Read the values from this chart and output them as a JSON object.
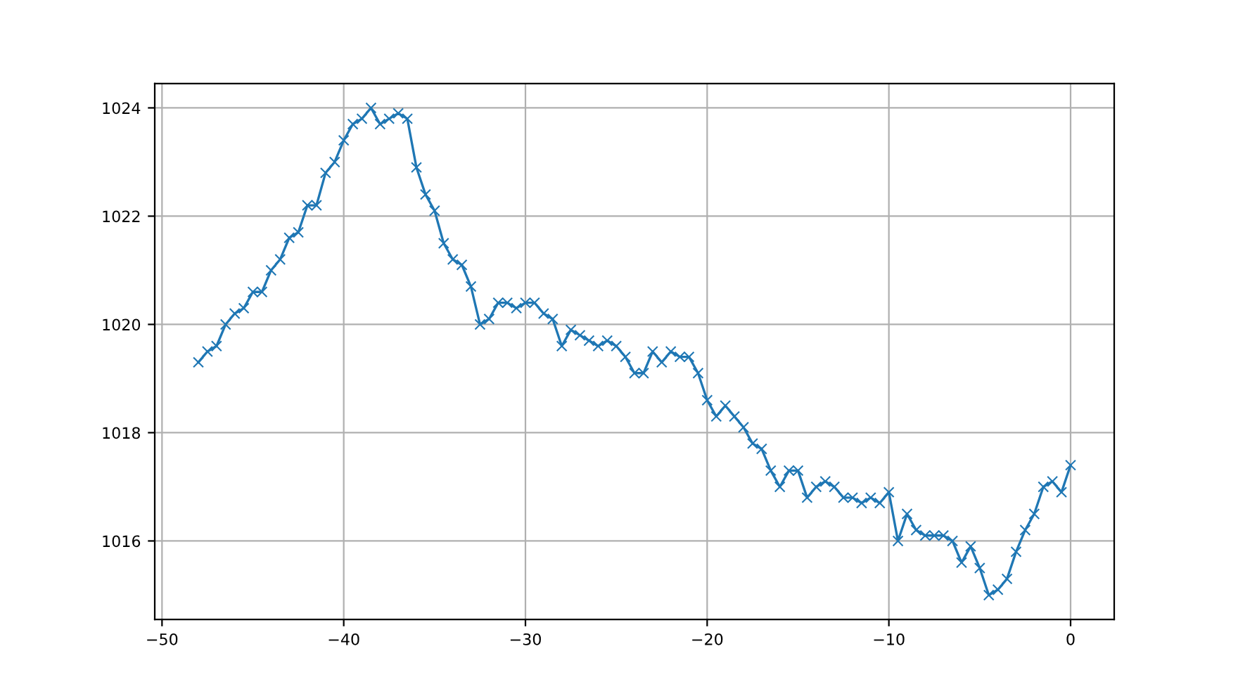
{
  "chart_data": {
    "type": "line",
    "x": [
      -48,
      -47.5,
      -47,
      -46.5,
      -46,
      -45.5,
      -45,
      -44.5,
      -44,
      -43.5,
      -43,
      -42.5,
      -42,
      -41.5,
      -41,
      -40.5,
      -40,
      -39.5,
      -39,
      -38.5,
      -38,
      -37.5,
      -37,
      -36.5,
      -36,
      -35.5,
      -35,
      -34.5,
      -34,
      -33.5,
      -33,
      -32.5,
      -32,
      -31.5,
      -31,
      -30.5,
      -30,
      -29.5,
      -29,
      -28.5,
      -28,
      -27.5,
      -27,
      -26.5,
      -26,
      -25.5,
      -25,
      -24.5,
      -24,
      -23.5,
      -23,
      -22.5,
      -22,
      -21.5,
      -21,
      -20.5,
      -20,
      -19.5,
      -19,
      -18.5,
      -18,
      -17.5,
      -17,
      -16.5,
      -16,
      -15.5,
      -15,
      -14.5,
      -14,
      -13.5,
      -13,
      -12.5,
      -12,
      -11.5,
      -11,
      -10.5,
      -10,
      -9.5,
      -9,
      -8.5,
      -8,
      -7.5,
      -7,
      -6.5,
      -6,
      -5.5,
      -5,
      -4.5,
      -4,
      -3.5,
      -3,
      -2.5,
      -2,
      -1.5,
      -1,
      -0.5,
      0
    ],
    "series": [
      {
        "color": "#1f77b4",
        "values": [
          1019.3,
          1019.5,
          1019.6,
          1020.0,
          1020.2,
          1020.3,
          1020.6,
          1020.6,
          1021.0,
          1021.2,
          1021.6,
          1021.7,
          1022.2,
          1022.2,
          1022.8,
          1023.0,
          1023.4,
          1023.7,
          1023.8,
          1024.0,
          1023.7,
          1023.8,
          1023.9,
          1023.8,
          1022.9,
          1022.4,
          1022.1,
          1021.5,
          1021.2,
          1021.1,
          1020.7,
          1020.0,
          1020.1,
          1020.4,
          1020.4,
          1020.3,
          1020.4,
          1020.4,
          1020.2,
          1020.1,
          1019.6,
          1019.9,
          1019.8,
          1019.7,
          1019.6,
          1019.7,
          1019.6,
          1019.4,
          1019.1,
          1019.1,
          1019.5,
          1019.3,
          1019.5,
          1019.4,
          1019.4,
          1019.1,
          1018.6,
          1018.3,
          1018.5,
          1018.3,
          1018.1,
          1017.8,
          1017.7,
          1017.3,
          1017.0,
          1017.3,
          1017.3,
          1016.8,
          1017.0,
          1017.1,
          1017.0,
          1016.8,
          1016.8,
          1016.7,
          1016.8,
          1016.7,
          1016.9,
          1016.0,
          1016.5,
          1016.2,
          1016.1,
          1016.1,
          1016.1,
          1016.0,
          1015.6,
          1015.9,
          1015.5,
          1015.0,
          1015.1,
          1015.3,
          1015.8,
          1016.2,
          1016.5,
          1017.0,
          1017.1,
          1016.9,
          1017.4
        ]
      }
    ],
    "xlim": [
      -50.4,
      2.4
    ],
    "xticks": [
      {
        "value": -50,
        "label": "−50"
      },
      {
        "value": -40,
        "label": "−40"
      },
      {
        "value": -30,
        "label": "−30"
      },
      {
        "value": -20,
        "label": "−20"
      },
      {
        "value": -10,
        "label": "−10"
      },
      0
    ],
    "ylim": [
      1014.55,
      1024.45
    ],
    "yticks": [
      1016,
      1018,
      1020,
      1022,
      1024
    ],
    "grid": true,
    "marker": "cross",
    "line_style": "solid"
  }
}
